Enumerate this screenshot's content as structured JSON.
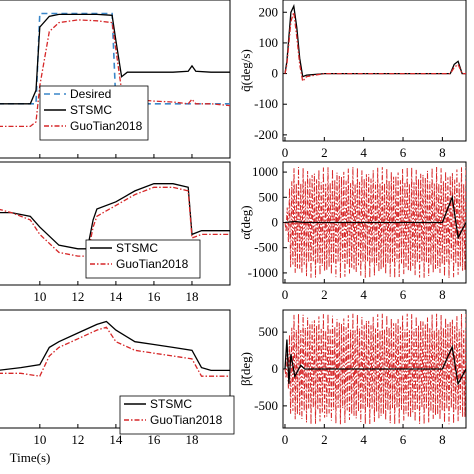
{
  "chart_data": [
    {
      "type": "line",
      "panel": "left-top",
      "x": [
        7.8,
        9.5,
        9.8,
        10.0,
        10.5,
        11,
        12,
        13,
        13.8,
        14.0,
        14.3,
        14.6,
        15,
        16,
        17,
        17.8,
        18.0,
        18.2,
        19,
        20
      ],
      "xticks": [
        "10",
        "12",
        "14",
        "16",
        "18"
      ],
      "xlim": [
        7.8,
        20
      ],
      "series": [
        {
          "name": "Desired",
          "style": "dashed",
          "color": "#3a86c8",
          "values": [
            0,
            0,
            0,
            1,
            1,
            1,
            1,
            1,
            1,
            0,
            0,
            0,
            0,
            0,
            0,
            0,
            0,
            0,
            0,
            0
          ]
        },
        {
          "name": "STSMC",
          "style": "solid",
          "color": "#000000",
          "values": [
            0,
            0,
            0.15,
            0.85,
            0.97,
            0.99,
            0.99,
            0.99,
            0.98,
            0.7,
            0.3,
            0.35,
            0.35,
            0.35,
            0.35,
            0.36,
            0.42,
            0.36,
            0.35,
            0.35
          ]
        },
        {
          "name": "GuoTian2018",
          "style": "dash-dot",
          "color": "#d62728",
          "values": [
            -0.25,
            -0.25,
            -0.2,
            0.2,
            0.8,
            0.9,
            0.93,
            0.92,
            0.9,
            0.6,
            0.15,
            0.08,
            0.05,
            0.03,
            0.02,
            0.0,
            0.05,
            0.0,
            0.0,
            -0.02
          ]
        }
      ],
      "legend": [
        "Desired",
        "STSMC",
        "GuoTian2018"
      ]
    },
    {
      "type": "line",
      "panel": "left-middle",
      "x": [
        7.8,
        8.5,
        9.5,
        10,
        11,
        12,
        12.5,
        12.8,
        13,
        14,
        15,
        16,
        17,
        17.8,
        18,
        18.5,
        19,
        20
      ],
      "xticks": [
        "10",
        "12",
        "14",
        "16",
        "18"
      ],
      "xlim": [
        7.8,
        20
      ],
      "series": [
        {
          "name": "STSMC",
          "style": "solid",
          "color": "#000000",
          "values": [
            0.5,
            0.5,
            0.45,
            0.3,
            0.05,
            0.0,
            0.0,
            0.4,
            0.55,
            0.65,
            0.8,
            0.9,
            0.9,
            0.85,
            0.2,
            0.25,
            0.25,
            0.25
          ]
        },
        {
          "name": "GuoTian2018",
          "style": "dash-dot",
          "color": "#d62728",
          "values": [
            0.55,
            0.5,
            0.4,
            0.2,
            -0.05,
            -0.1,
            -0.1,
            0.3,
            0.45,
            0.6,
            0.75,
            0.85,
            0.85,
            0.8,
            0.15,
            0.2,
            0.2,
            0.2
          ]
        }
      ],
      "legend": [
        "STSMC",
        "GuoTian2018"
      ]
    },
    {
      "type": "line",
      "panel": "left-bottom",
      "x": [
        7.8,
        9,
        10,
        10.5,
        11,
        12,
        13,
        13.5,
        14,
        15,
        16,
        17,
        18,
        18.5,
        19,
        20
      ],
      "xticks": [
        "10",
        "12",
        "14",
        "16",
        "18"
      ],
      "xlim": [
        7.8,
        20
      ],
      "xlabel": "Time(s)",
      "series": [
        {
          "name": "STSMC",
          "style": "solid",
          "color": "#000000",
          "values": [
            0.1,
            0.15,
            0.2,
            0.5,
            0.6,
            0.75,
            0.9,
            0.95,
            0.8,
            0.6,
            0.55,
            0.5,
            0.45,
            0.15,
            0.1,
            0.1
          ]
        },
        {
          "name": "GuoTian2018",
          "style": "dash-dot",
          "color": "#d62728",
          "values": [
            0.05,
            0.05,
            0.0,
            0.35,
            0.5,
            0.65,
            0.8,
            0.85,
            0.6,
            0.45,
            0.4,
            0.35,
            0.3,
            0.0,
            0.0,
            0.0
          ]
        }
      ],
      "legend": [
        "STSMC",
        "GuoTian2018"
      ]
    },
    {
      "type": "line",
      "panel": "right-top",
      "ylabel": "q̃(deg/s)",
      "xticks": [
        "0",
        "2",
        "4",
        "6",
        "8"
      ],
      "yticks": [
        "200",
        "100",
        "0",
        "-100",
        "-200"
      ],
      "xlim": [
        -0.1,
        9.2
      ],
      "ylim": [
        -220,
        240
      ],
      "series": [
        {
          "name": "STSMC",
          "style": "solid",
          "color": "#000000",
          "x": [
            0,
            0.1,
            0.2,
            0.3,
            0.45,
            0.6,
            0.75,
            0.9,
            1.1,
            2,
            4,
            6,
            8,
            8.4,
            8.6,
            8.8,
            9.0,
            9.2
          ],
          "values": [
            0,
            40,
            120,
            200,
            220,
            150,
            50,
            -10,
            -5,
            0,
            0,
            0,
            0,
            0,
            30,
            40,
            0,
            0
          ]
        },
        {
          "name": "GuoTian2018",
          "style": "dash-dot",
          "color": "#d62728",
          "x": [
            0,
            0.1,
            0.2,
            0.3,
            0.45,
            0.6,
            0.75,
            0.9,
            1.1,
            2,
            4,
            6,
            8,
            8.4,
            8.6,
            8.8,
            9.0,
            9.2
          ],
          "values": [
            0,
            30,
            100,
            170,
            200,
            120,
            30,
            -25,
            -10,
            0,
            0,
            0,
            0,
            0,
            20,
            30,
            0,
            0
          ]
        }
      ]
    },
    {
      "type": "line",
      "panel": "right-middle",
      "ylabel": "α̃(deg)",
      "xticks": [
        "0",
        "2",
        "4",
        "6",
        "8"
      ],
      "yticks": [
        "1000",
        "500",
        "0",
        "-500",
        "-1000"
      ],
      "xlim": [
        -0.1,
        9.2
      ],
      "ylim": [
        -1200,
        1200
      ],
      "series": [
        {
          "name": "STSMC",
          "style": "solid",
          "color": "#000000",
          "x": [
            0,
            0.5,
            1,
            2,
            4,
            6,
            8,
            8.5,
            8.8,
            9.2
          ],
          "values": [
            0,
            20,
            0,
            0,
            0,
            0,
            0,
            500,
            -300,
            0
          ]
        },
        {
          "name": "GuoTian2018",
          "style": "dash-dot",
          "color": "#d62728",
          "envelope": [
            -1100,
            1100
          ],
          "x": [
            0,
            9.2
          ]
        }
      ]
    },
    {
      "type": "line",
      "panel": "right-bottom",
      "ylabel": "β̃(deg)",
      "xticks": [
        "0",
        "2",
        "4",
        "6",
        "8"
      ],
      "yticks": [
        "500",
        "0",
        "-500"
      ],
      "xlim": [
        -0.1,
        9.2
      ],
      "ylim": [
        -800,
        800
      ],
      "series": [
        {
          "name": "STSMC",
          "style": "solid",
          "color": "#000000",
          "x": [
            0,
            0.1,
            0.2,
            0.3,
            0.5,
            0.8,
            1,
            2,
            4,
            6,
            8,
            8.5,
            8.8,
            9.2
          ],
          "values": [
            0,
            400,
            -200,
            200,
            -100,
            50,
            0,
            0,
            0,
            0,
            0,
            300,
            -200,
            0
          ]
        },
        {
          "name": "GuoTian2018",
          "style": "dash-dot",
          "color": "#d62728",
          "envelope": [
            -750,
            750
          ],
          "x": [
            0,
            9.2
          ]
        }
      ]
    }
  ]
}
